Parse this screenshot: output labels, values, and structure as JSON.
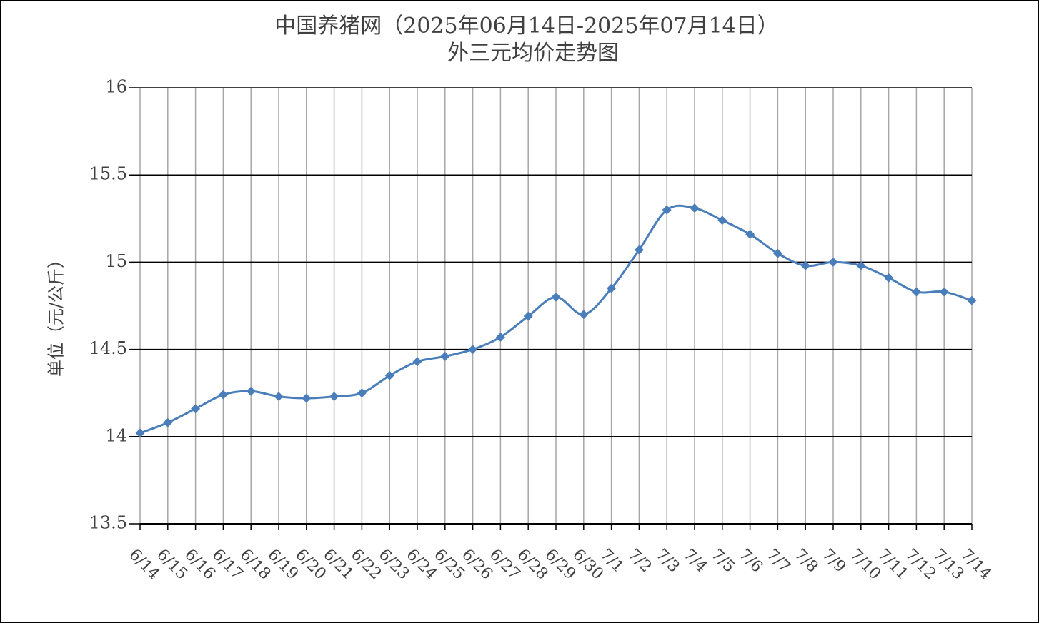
{
  "chart_data": {
    "type": "line",
    "title": "中国养猪网（2025年06月14日-2025年07月14日）",
    "subtitle": "外三元均价走势图",
    "y_label": "单位（元/公斤）",
    "categories": [
      "6/14",
      "6/15",
      "6/16",
      "6/17",
      "6/18",
      "6/19",
      "6/20",
      "6/21",
      "6/22",
      "6/23",
      "6/24",
      "6/25",
      "6/26",
      "6/27",
      "6/28",
      "6/29",
      "6/30",
      "7/1",
      "7/2",
      "7/3",
      "7/4",
      "7/5",
      "7/6",
      "7/7",
      "7/8",
      "7/9",
      "7/10",
      "7/11",
      "7/12",
      "7/13",
      "7/14"
    ],
    "values": [
      14.02,
      14.08,
      14.16,
      14.24,
      14.26,
      14.23,
      14.22,
      14.23,
      14.25,
      14.35,
      14.43,
      14.46,
      14.5,
      14.57,
      14.69,
      14.8,
      14.7,
      14.85,
      15.07,
      15.3,
      15.31,
      15.24,
      15.16,
      15.05,
      14.98,
      15.0,
      14.98,
      14.91,
      14.83,
      14.83,
      14.78
    ],
    "color": "#4a7ebb",
    "smooth": true,
    "ylim": [
      13.5,
      16
    ],
    "yticks": [
      13.5,
      14,
      14.5,
      15,
      15.5,
      16
    ],
    "grid": true
  }
}
